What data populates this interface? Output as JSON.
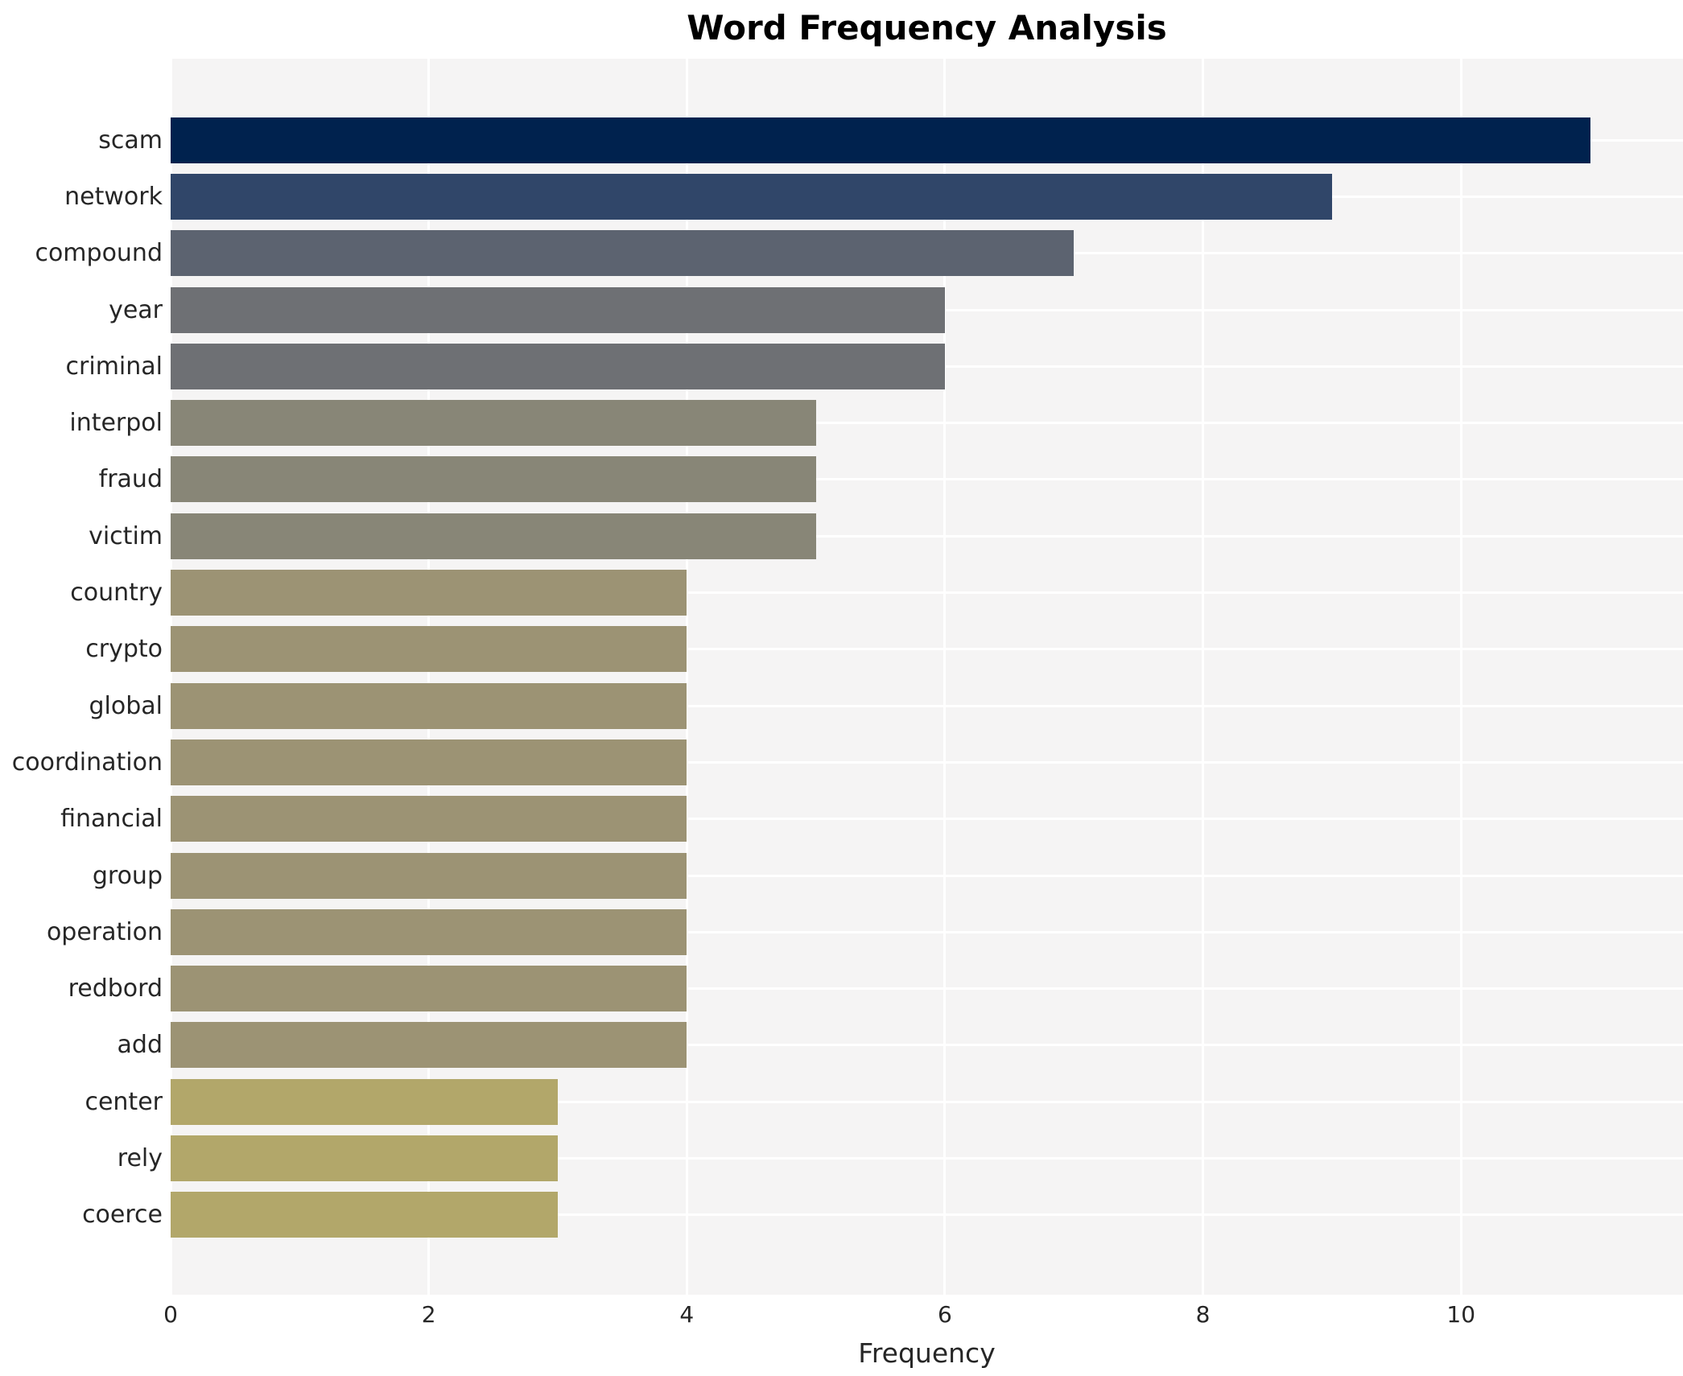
{
  "chart_data": {
    "type": "bar",
    "orientation": "horizontal",
    "title": "Word Frequency Analysis",
    "xlabel": "Frequency",
    "ylabel": "",
    "categories": [
      "scam",
      "network",
      "compound",
      "year",
      "criminal",
      "interpol",
      "fraud",
      "victim",
      "country",
      "crypto",
      "global",
      "coordination",
      "financial",
      "group",
      "operation",
      "redbord",
      "add",
      "center",
      "rely",
      "coerce"
    ],
    "values": [
      11,
      9,
      7,
      6,
      6,
      5,
      5,
      5,
      4,
      4,
      4,
      4,
      4,
      4,
      4,
      4,
      4,
      3,
      3,
      3
    ],
    "bar_colors": [
      "#00224e",
      "#304669",
      "#5c6370",
      "#6e7074",
      "#6e7074",
      "#888677",
      "#888677",
      "#888677",
      "#9c9374",
      "#9c9374",
      "#9c9374",
      "#9c9374",
      "#9c9374",
      "#9c9374",
      "#9c9374",
      "#9c9374",
      "#9c9374",
      "#b2a76a",
      "#b2a76a",
      "#b2a76a"
    ],
    "xlim": [
      0,
      11.72
    ],
    "xticks": [
      0,
      2,
      4,
      6,
      8,
      10
    ],
    "xtick_labels": [
      "0",
      "2",
      "4",
      "6",
      "8",
      "10"
    ],
    "grid": true,
    "legend": false,
    "colors": {
      "figure_background": "#ffffff",
      "plot_background": "#f5f4f4",
      "grid_color": "#ffffff",
      "tick_text": "#262626",
      "title_text": "#000000"
    }
  }
}
